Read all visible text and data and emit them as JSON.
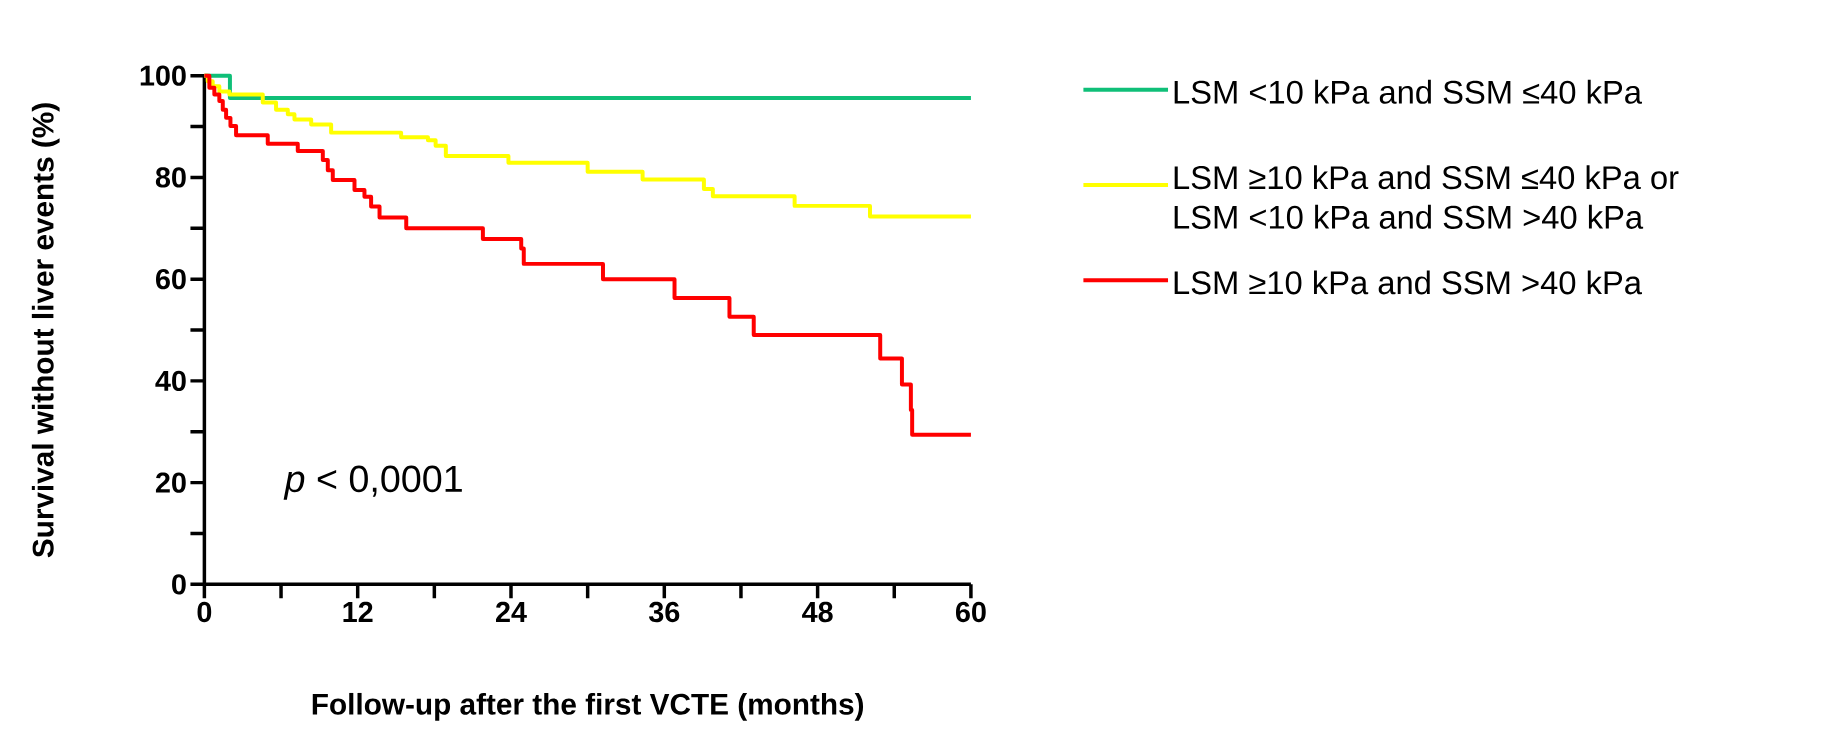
{
  "chart_data": {
    "type": "step",
    "xlabel": "Follow-up after the first VCTE (months)",
    "ylabel": "Survival without liver events (%)",
    "xlim": [
      0,
      60
    ],
    "ylim": [
      0,
      100
    ],
    "xticks": [
      0,
      {
        "value": 6,
        "label": null
      },
      12,
      {
        "value": 18,
        "label": null
      },
      24,
      {
        "value": 30,
        "label": null
      },
      36,
      {
        "value": 42,
        "label": null
      },
      48,
      {
        "value": 54,
        "label": null
      },
      60
    ],
    "yticks": [
      0,
      {
        "value": 10,
        "label": null
      },
      20,
      {
        "value": 30,
        "label": null
      },
      40,
      {
        "value": 50,
        "label": null
      },
      60,
      {
        "value": 70,
        "label": null
      },
      80,
      {
        "value": 90,
        "label": null
      },
      100
    ],
    "legend": "right",
    "annotations": [
      "*p* < 0,0001"
    ],
    "series": [
      {
        "name": "LSM <10 kPa and SSM ≤40 kPa",
        "color": "#0fbf78",
        "x": [
          0,
          2.0,
          60
        ],
        "values": [
          100,
          95.6,
          95.6
        ]
      },
      {
        "name": "LSM ≥10 kPa and SSM ≤40 kPa or LSM <10 kPa and SSM >40 kPa",
        "color": "#ffff00",
        "x": [
          0,
          0.26,
          0.65,
          1.17,
          1.96,
          4.57,
          5.61,
          6.53,
          7.05,
          8.36,
          9.92,
          15.4,
          17.5,
          18.1,
          18.9,
          23.8,
          30.0,
          34.3,
          39.1,
          39.8,
          46.2,
          52.1,
          60
        ],
        "values": [
          100,
          98.9,
          97.9,
          96.9,
          96.3,
          94.7,
          93.3,
          92.4,
          91.4,
          90.4,
          88.8,
          87.9,
          87.3,
          86.2,
          84.2,
          82.9,
          81.1,
          79.6,
          77.7,
          76.3,
          74.4,
          72.3,
          72.3
        ]
      },
      {
        "name": "LSM ≥10 kPa and SSM >40 kPa",
        "color": "#ff0000",
        "x": [
          0,
          0.39,
          0.78,
          1.17,
          1.44,
          1.7,
          2.04,
          2.48,
          4.96,
          7.31,
          9.27,
          9.66,
          10.05,
          11.75,
          12.53,
          13.05,
          13.71,
          15.8,
          21.8,
          24.8,
          25.0,
          31.2,
          36.8,
          41.1,
          43.0,
          52.9,
          54.6,
          55.3,
          55.4,
          60
        ],
        "values": [
          100,
          97.6,
          96.3,
          95.0,
          93.3,
          91.7,
          90.1,
          88.3,
          86.6,
          85.2,
          83.4,
          81.4,
          79.5,
          77.5,
          76.2,
          74.3,
          72.1,
          70.0,
          67.9,
          66.0,
          63.0,
          60.0,
          56.3,
          52.6,
          49.0,
          44.4,
          39.3,
          34.3,
          29.4,
          29.4
        ]
      }
    ]
  }
}
